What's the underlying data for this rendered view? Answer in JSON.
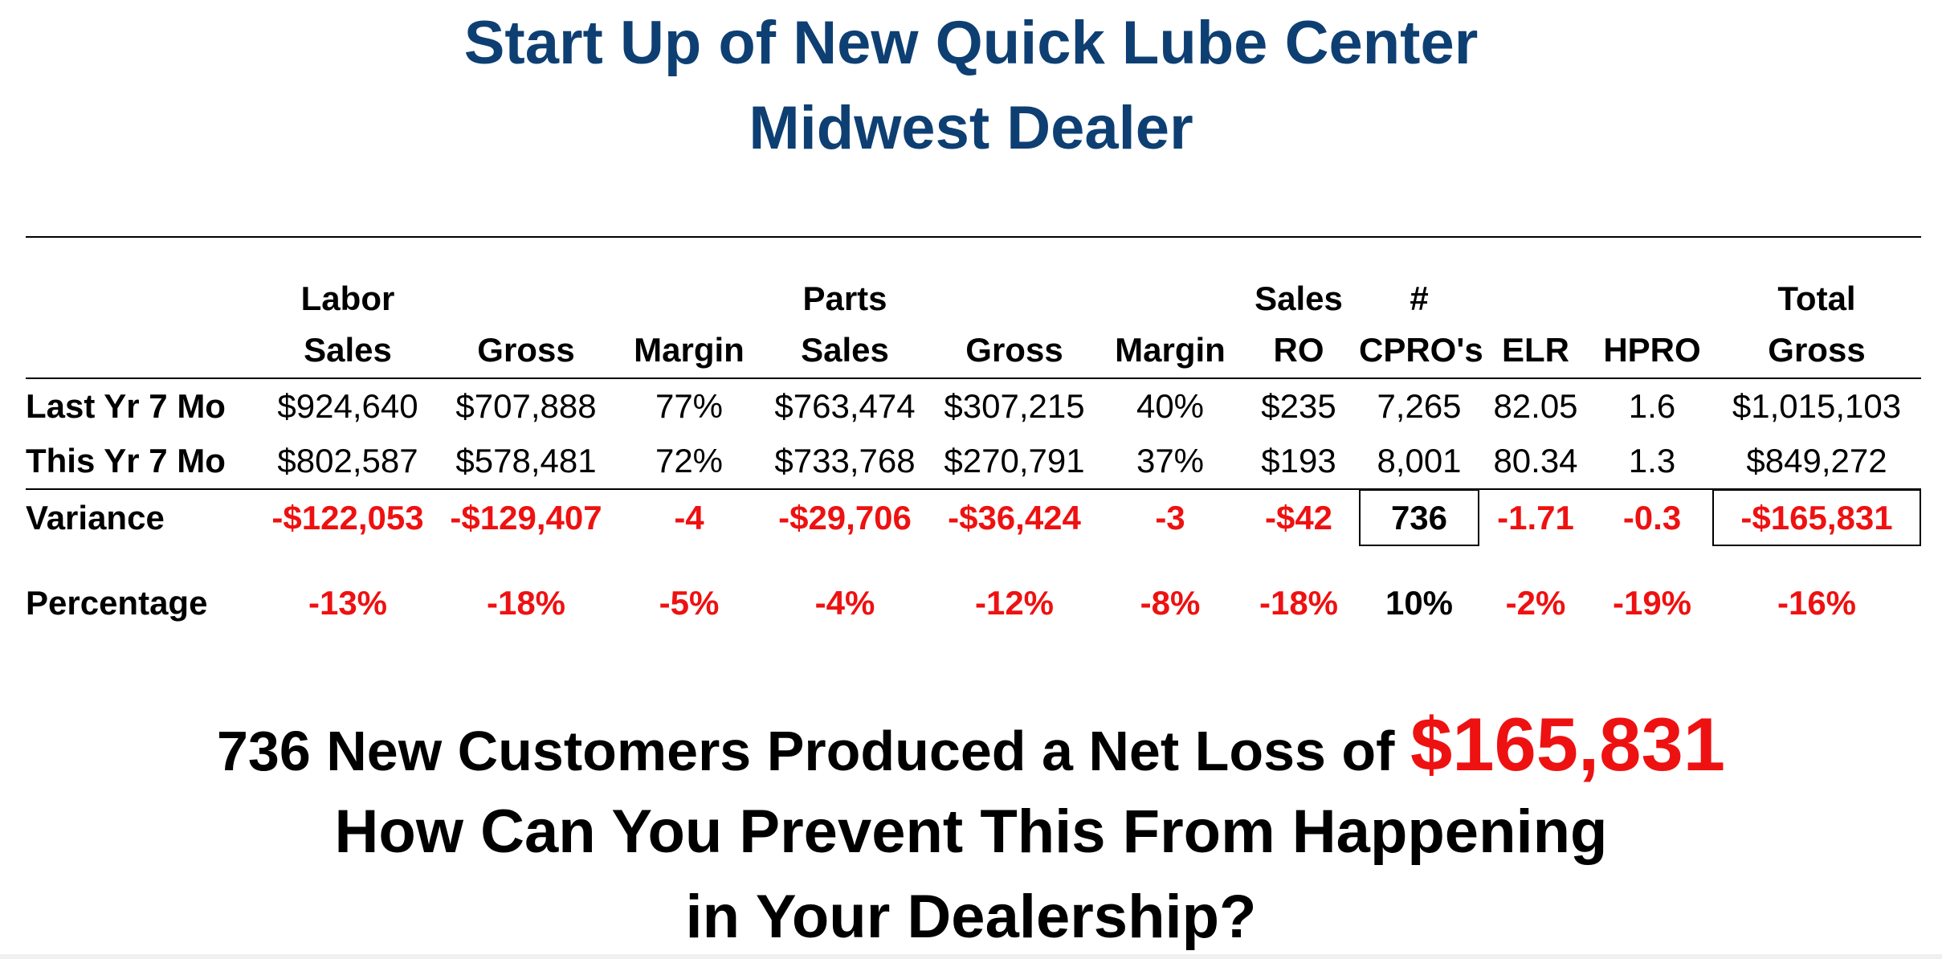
{
  "title": {
    "line1": "Start Up of New Quick Lube Center",
    "line2": "Midwest Dealer"
  },
  "table": {
    "headers": [
      {
        "l1": "",
        "l2": ""
      },
      {
        "l1": "Labor",
        "l2": "Sales"
      },
      {
        "l1": "",
        "l2": "Gross"
      },
      {
        "l1": "",
        "l2": "Margin"
      },
      {
        "l1": "Parts",
        "l2": "Sales"
      },
      {
        "l1": "",
        "l2": "Gross"
      },
      {
        "l1": "",
        "l2": "Margin"
      },
      {
        "l1": "Sales",
        "l2": "RO"
      },
      {
        "l1": "#",
        "l2": "CPRO's"
      },
      {
        "l1": "",
        "l2": "ELR"
      },
      {
        "l1": "",
        "l2": "HPRO"
      },
      {
        "l1": "Total",
        "l2": "Gross"
      }
    ],
    "rows": {
      "last_year": [
        "Last Yr 7 Mo",
        "$924,640",
        "$707,888",
        "77%",
        "$763,474",
        "$307,215",
        "40%",
        "$235",
        "7,265",
        "82.05",
        "1.6",
        "$1,015,103"
      ],
      "this_year": [
        "This Yr 7 Mo",
        "$802,587",
        "$578,481",
        "72%",
        "$733,768",
        "$270,791",
        "37%",
        "$193",
        "8,001",
        "80.34",
        "1.3",
        "$849,272"
      ],
      "variance": [
        "Variance",
        "-$122,053",
        "-$129,407",
        "-4",
        "-$29,706",
        "-$36,424",
        "-3",
        "-$42",
        "736",
        "-1.71",
        "-0.3",
        "-$165,831"
      ],
      "percentage": [
        "Percentage",
        "-13%",
        "-18%",
        "-5%",
        "-4%",
        "-12%",
        "-8%",
        "-18%",
        "10%",
        "-2%",
        "-19%",
        "-16%"
      ]
    }
  },
  "bottom": {
    "line1_prefix": "736 New Customers Produced a Net Loss of",
    "line1_amount": "$165,831",
    "line2": "How Can You Prevent This From Happening",
    "line3": "in Your Dealership?"
  },
  "colors": {
    "title": "#0e3f73",
    "negative": "#ee1111",
    "text": "#000000"
  }
}
